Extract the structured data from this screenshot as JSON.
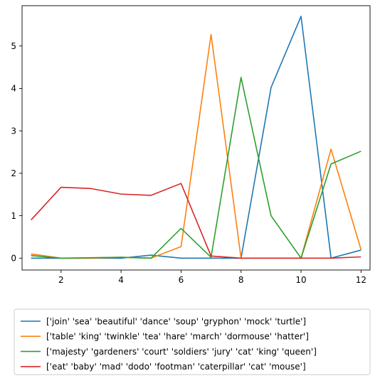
{
  "chart_data": {
    "type": "line",
    "title": "",
    "xlabel": "",
    "ylabel": "",
    "x": [
      1,
      2,
      3,
      4,
      5,
      6,
      7,
      8,
      9,
      10,
      11,
      12
    ],
    "xlim": [
      0.7,
      12.3
    ],
    "ylim": [
      -0.28,
      5.95
    ],
    "xticks": [
      2,
      4,
      6,
      8,
      10,
      12
    ],
    "yticks": [
      0,
      1,
      2,
      3,
      4,
      5
    ],
    "grid": false,
    "legend_placement": "below-center",
    "series": [
      {
        "name": "['join' 'sea' 'beautiful' 'dance' 'soup' 'gryphon' 'mock' 'turtle']",
        "color": "#1f77b4",
        "values": [
          0.0,
          0.0,
          0.0,
          0.0,
          0.07,
          0.0,
          0.0,
          0.0,
          4.02,
          5.7,
          0.0,
          0.19
        ]
      },
      {
        "name": "['table' 'king' 'twinkle' 'tea' 'hare' 'march' 'dormouse' 'hatter']",
        "color": "#ff7f0e",
        "values": [
          0.1,
          0.0,
          0.0,
          0.02,
          0.0,
          0.27,
          5.27,
          0.0,
          0.0,
          0.0,
          2.57,
          0.2
        ]
      },
      {
        "name": "['majesty' 'gardeners' 'court' 'soldiers' 'jury' 'cat' 'king' 'queen']",
        "color": "#2ca02c",
        "values": [
          0.06,
          0.0,
          0.01,
          0.02,
          0.0,
          0.7,
          0.02,
          4.26,
          1.0,
          0.0,
          2.22,
          2.52
        ]
      },
      {
        "name": "['eat' 'baby' 'mad' 'dodo' 'footman' 'caterpillar' 'cat' 'mouse']",
        "color": "#d62728",
        "values": [
          0.9,
          1.67,
          1.64,
          1.51,
          1.48,
          1.76,
          0.05,
          0.0,
          0.0,
          0.0,
          0.0,
          0.03
        ]
      }
    ]
  }
}
